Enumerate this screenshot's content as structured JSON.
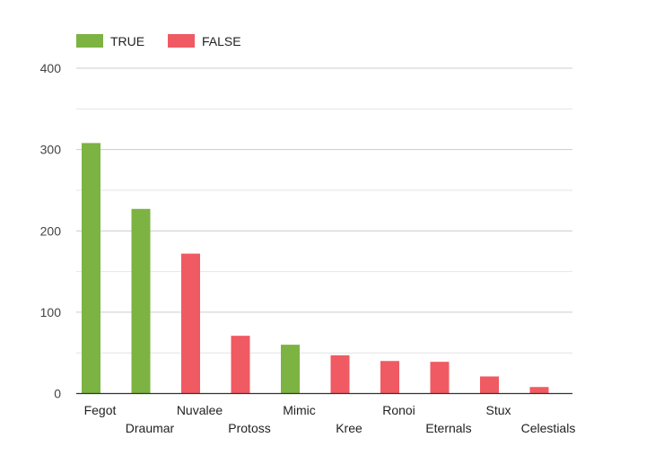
{
  "chart_data": {
    "type": "bar",
    "title": "",
    "xlabel": "",
    "ylabel": "",
    "ylim": [
      0,
      400
    ],
    "yticks": [
      "0",
      "100",
      "200",
      "300",
      "400"
    ],
    "grid": true,
    "legend_position": "top-left",
    "categories": [
      "Fegot",
      "Draumar",
      "Nuvalee",
      "Protoss",
      "Mimic",
      "Kree",
      "Ronoi",
      "Eternals",
      "Stux",
      "Celestials"
    ],
    "series": [
      {
        "name": "TRUE",
        "color": "#7cb342",
        "values": [
          308,
          227,
          null,
          null,
          60,
          null,
          null,
          null,
          null,
          null
        ]
      },
      {
        "name": "FALSE",
        "color": "#f05a63",
        "values": [
          null,
          null,
          172,
          71,
          null,
          47,
          40,
          39,
          21,
          8
        ]
      }
    ]
  }
}
